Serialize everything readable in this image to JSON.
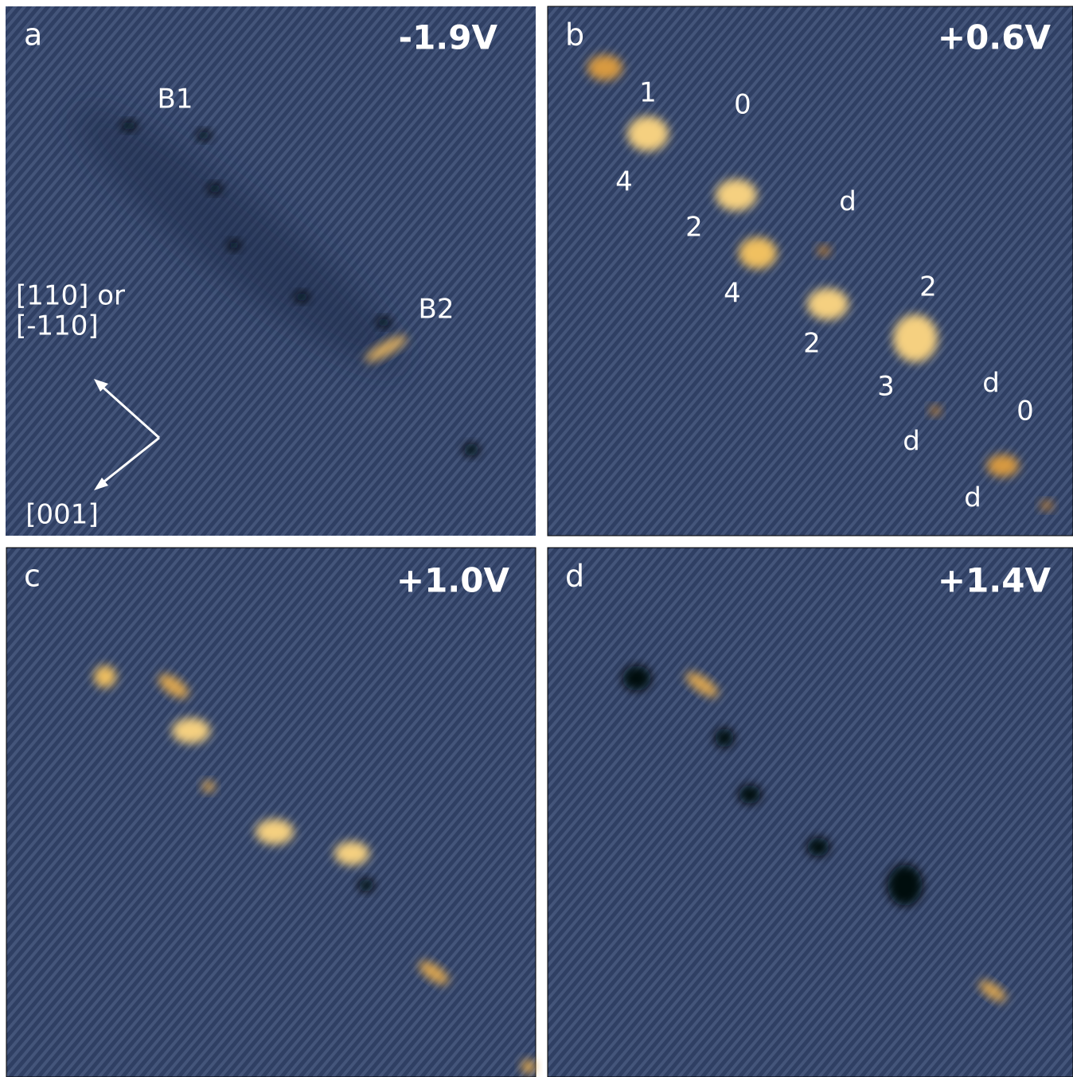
{
  "panels": [
    {
      "letter": "a",
      "bias": "-1.9V",
      "labels": [
        "B1",
        "B2",
        "[110] or",
        "[-110]",
        "[001]"
      ]
    },
    {
      "letter": "b",
      "bias": "+0.6V",
      "labels": [
        "1",
        "0",
        "4",
        "2",
        "d",
        "4",
        "2",
        "2",
        "3",
        "d",
        "0",
        "d",
        "d"
      ]
    },
    {
      "letter": "c",
      "bias": "+1.0V"
    },
    {
      "letter": "d",
      "bias": "+1.4V"
    }
  ]
}
